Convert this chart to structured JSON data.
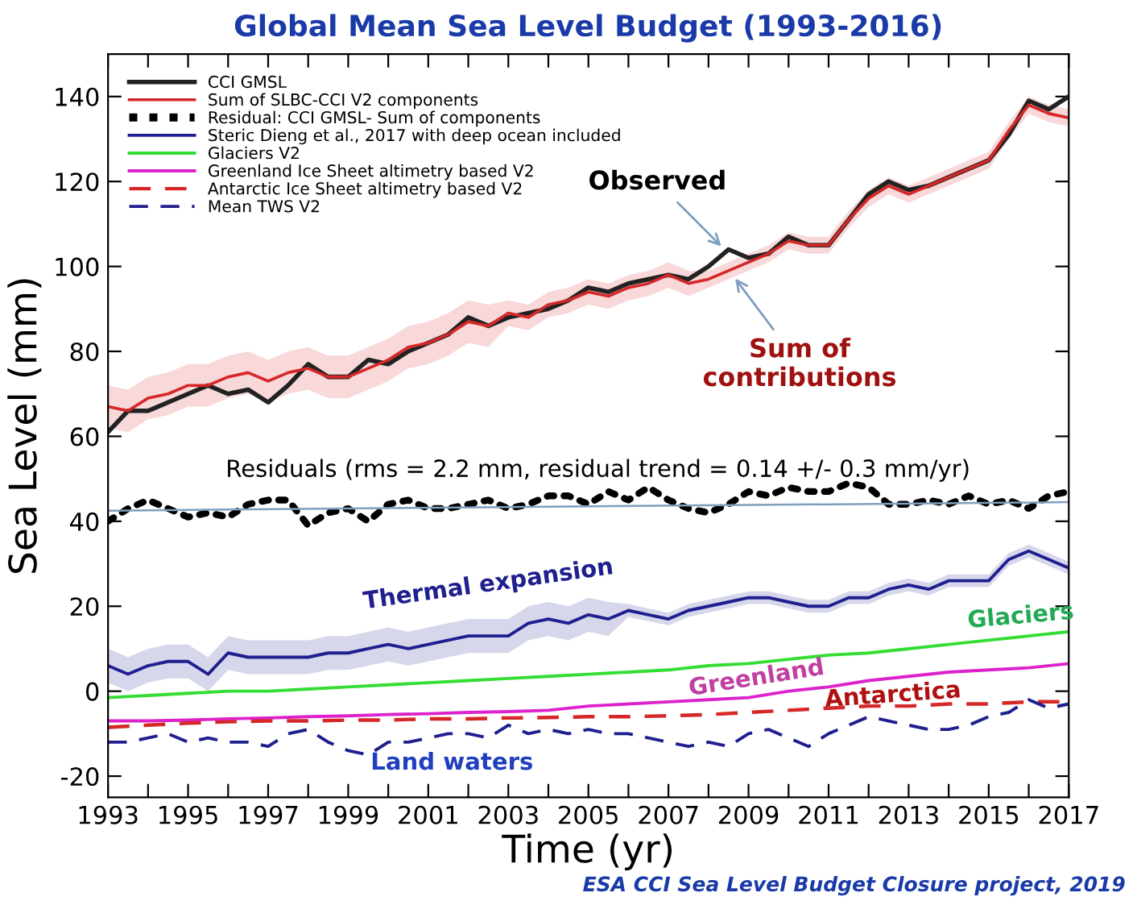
{
  "chart_data": {
    "type": "line",
    "title": "Global Mean Sea Level Budget (1993-2016)",
    "xlabel": "Time (yr)",
    "ylabel": "Sea Level (mm)",
    "x": [
      1993,
      1993.5,
      1994,
      1994.5,
      1995,
      1995.5,
      1996,
      1996.5,
      1997,
      1997.5,
      1998,
      1998.5,
      1999,
      1999.5,
      2000,
      2000.5,
      2001,
      2001.5,
      2002,
      2002.5,
      2003,
      2003.5,
      2004,
      2004.5,
      2005,
      2005.5,
      2006,
      2006.5,
      2007,
      2007.5,
      2008,
      2008.5,
      2009,
      2009.5,
      2010,
      2010.5,
      2011,
      2011.5,
      2012,
      2012.5,
      2013,
      2013.5,
      2014,
      2014.5,
      2015,
      2015.5,
      2016,
      2016.5,
      2017
    ],
    "xlim": [
      1993,
      2017
    ],
    "xticks": [
      1993,
      {
        "value": 1994,
        "label": null
      },
      1995,
      {
        "value": 1996,
        "label": null
      },
      1997,
      {
        "value": 1998,
        "label": null
      },
      1999,
      {
        "value": 2000,
        "label": null
      },
      2001,
      {
        "value": 2002,
        "label": null
      },
      2003,
      {
        "value": 2004,
        "label": null
      },
      2005,
      {
        "value": 2006,
        "label": null
      },
      2007,
      {
        "value": 2008,
        "label": null
      },
      2009,
      {
        "value": 2010,
        "label": null
      },
      2011,
      {
        "value": 2012,
        "label": null
      },
      2013,
      {
        "value": 2014,
        "label": null
      },
      2015,
      {
        "value": 2016,
        "label": null
      },
      2017
    ],
    "ylim": [
      -25,
      150
    ],
    "yticks": [
      -20,
      0,
      20,
      40,
      60,
      80,
      100,
      120,
      140
    ],
    "grid": false,
    "legend": "top left",
    "series": [
      {
        "name": "CCI GMSL",
        "color": "#222222",
        "values": [
          61,
          66,
          66,
          68,
          70,
          72,
          70,
          71,
          68,
          72,
          77,
          74,
          74,
          78,
          77,
          80,
          82,
          84,
          88,
          86,
          88,
          89,
          90,
          92,
          95,
          94,
          96,
          97,
          98,
          97,
          100,
          104,
          102,
          103,
          107,
          105,
          105,
          111,
          117,
          120,
          118,
          119,
          121,
          123,
          125,
          131,
          139,
          137,
          140
        ]
      },
      {
        "name": "Sum of SLBC-CCI V2 components",
        "color": "#d62728",
        "values": [
          67,
          66,
          69,
          70,
          72,
          72,
          74,
          75,
          73,
          75,
          76,
          74,
          74,
          76,
          78,
          81,
          82,
          84,
          87,
          86,
          89,
          88,
          91,
          92,
          94,
          93,
          95,
          96,
          98,
          96,
          97,
          99,
          101,
          103,
          106,
          105,
          105,
          111,
          116,
          119,
          117,
          119,
          121,
          123,
          125,
          132,
          138,
          136,
          135
        ],
        "lower": [
          62,
          61,
          64,
          65,
          67,
          67,
          69,
          70,
          68,
          70,
          71,
          69,
          69,
          71,
          73,
          76,
          77,
          79,
          82,
          81,
          86,
          85,
          88,
          89,
          91,
          90,
          92,
          93,
          95,
          93,
          95,
          97,
          99,
          101,
          104,
          103,
          103,
          109,
          114,
          117,
          115,
          117,
          119,
          121,
          123,
          130,
          136,
          134,
          133
        ],
        "upper": [
          72,
          71,
          74,
          75,
          77,
          77,
          79,
          80,
          78,
          80,
          81,
          79,
          79,
          81,
          83,
          86,
          87,
          89,
          92,
          91,
          92,
          91,
          94,
          95,
          97,
          96,
          98,
          99,
          101,
          99,
          99,
          101,
          103,
          105,
          108,
          107,
          107,
          113,
          118,
          121,
          119,
          121,
          123,
          125,
          127,
          134,
          140,
          138,
          137
        ]
      },
      {
        "name": "Residual: CCI GMSL- Sum of components",
        "color": "#000000",
        "line_style": "dotted",
        "values": [
          40,
          43,
          45,
          43,
          41,
          42,
          41,
          44,
          45,
          45,
          39,
          42,
          43,
          40,
          44,
          45,
          43,
          43,
          44,
          45,
          43,
          44,
          46,
          46,
          44,
          47,
          45,
          48,
          45,
          43,
          42,
          44,
          47,
          46,
          48,
          47,
          47,
          49,
          48,
          44,
          44,
          45,
          44,
          46,
          44,
          45,
          43,
          46,
          47
        ]
      },
      {
        "color": "#7f9fbf",
        "x": [
          1993,
          2017
        ],
        "values": [
          42.5,
          44.5
        ]
      },
      {
        "name": "Steric Dieng et al., 2017 with deep ocean included",
        "color": "#1f1f8f",
        "values": [
          6,
          4,
          6,
          7,
          7,
          4,
          9,
          8,
          8,
          8,
          8,
          9,
          9,
          10,
          11,
          10,
          11,
          12,
          13,
          13,
          13,
          16,
          17,
          16,
          18,
          17,
          19,
          18,
          17,
          19,
          20,
          21,
          22,
          22,
          21,
          20,
          20,
          22,
          22,
          24,
          25,
          24,
          26,
          26,
          26,
          31,
          33,
          31,
          29
        ],
        "lower": [
          2,
          0,
          2,
          3,
          3,
          0,
          5,
          4,
          4,
          4,
          4,
          5,
          5,
          6,
          7,
          6,
          7,
          8,
          9,
          9,
          9,
          12,
          13,
          12,
          14,
          13,
          17.5,
          16.5,
          15.5,
          17.5,
          18.5,
          19.5,
          20.5,
          20.5,
          19.5,
          18.5,
          18.5,
          20.5,
          20.5,
          22.5,
          23.5,
          22.5,
          24.5,
          24.5,
          24.5,
          29.5,
          31.5,
          29.5,
          27.5
        ],
        "upper": [
          10,
          8,
          10,
          11,
          11,
          8,
          13,
          12,
          12,
          12,
          12,
          13,
          13,
          14,
          15,
          14,
          15,
          16,
          17,
          17,
          17,
          20,
          21,
          20,
          22,
          21,
          20.5,
          19.5,
          18.5,
          20.5,
          21.5,
          22.5,
          23.5,
          23.5,
          22.5,
          21.5,
          21.5,
          23.5,
          23.5,
          25.5,
          26.5,
          25.5,
          27.5,
          27.5,
          27.5,
          32.5,
          34.5,
          32.5,
          30.5
        ]
      },
      {
        "name": "Glaciers V2",
        "color": "#33dd33",
        "x": [
          1993,
          1994,
          1995,
          1996,
          1997,
          1998,
          1999,
          2000,
          2001,
          2002,
          2003,
          2004,
          2005,
          2006,
          2007,
          2008,
          2009,
          2010,
          2011,
          2012,
          2013,
          2014,
          2015,
          2016,
          2017
        ],
        "values": [
          -1.5,
          -1,
          -0.5,
          0,
          0,
          0.5,
          1,
          1.5,
          2,
          2.5,
          3,
          3.5,
          4,
          4.5,
          5,
          6,
          6.5,
          7.5,
          8.5,
          9,
          10,
          11,
          12,
          13,
          14
        ]
      },
      {
        "name": "Greenland Ice Sheet altimetry based V2",
        "color": "#dd22cc",
        "x": [
          1993,
          1994,
          1995,
          1996,
          1997,
          1998,
          1999,
          2000,
          2001,
          2002,
          2003,
          2004,
          2005,
          2006,
          2007,
          2008,
          2009,
          2010,
          2011,
          2012,
          2013,
          2014,
          2015,
          2016,
          2017
        ],
        "values": [
          -7,
          -7,
          -6.8,
          -6.5,
          -6.3,
          -6,
          -5.8,
          -5.5,
          -5.3,
          -5,
          -4.8,
          -4.5,
          -3.5,
          -3,
          -2.5,
          -2,
          -1.5,
          0,
          1,
          2.5,
          3.5,
          4.5,
          5,
          5.5,
          6.5
        ]
      },
      {
        "name": "Antarctic Ice Sheet altimetry based V2",
        "color": "#d62728",
        "line_style": "dashed",
        "x": [
          1993,
          1994,
          1995,
          1996,
          1997,
          1998,
          1999,
          2000,
          2001,
          2002,
          2003,
          2004,
          2005,
          2006,
          2007,
          2008,
          2009,
          2010,
          2011,
          2012,
          2013,
          2014,
          2015,
          2016,
          2017
        ],
        "values": [
          -8.5,
          -8,
          -7.5,
          -7.2,
          -7,
          -7,
          -6.8,
          -6.8,
          -6.5,
          -6.5,
          -6.3,
          -6.2,
          -6,
          -6,
          -5.8,
          -5.5,
          -5,
          -4.5,
          -4,
          -3.5,
          -3.5,
          -3,
          -3,
          -2.5,
          -2.5
        ]
      },
      {
        "name": "Mean TWS V2",
        "color": "#1f1f8f",
        "line_style": "dashed",
        "values": [
          -12,
          -12,
          -11,
          -10,
          -12,
          -11,
          -12,
          -12,
          -13,
          -10,
          -9,
          -12,
          -14,
          -15,
          -12,
          -12,
          -11,
          -10,
          -10,
          -11,
          -8,
          -10,
          -9,
          -10,
          -9,
          -10,
          -10,
          -11,
          -12,
          -13,
          -12,
          -13,
          -10,
          -9,
          -11,
          -13,
          -10,
          -8,
          -6,
          -7,
          -8,
          -9,
          -9,
          -8,
          -6,
          -5,
          -2,
          -4,
          -3
        ]
      }
    ],
    "annotations": [
      {
        "text": "Observed",
        "x": 2008.4,
        "y": 104
      },
      {
        "text": "Sum of\ncontributions",
        "x": 2008.6,
        "y": 98
      },
      "Residuals (rms = 2.2 mm, residual trend = 0.14 +/- 0.3 mm/yr)",
      "Thermal expansion",
      "Glaciers",
      "Greenland",
      "Antarctica",
      "Land waters",
      "ESA CCI Sea Level Budget Closure project, 2019"
    ]
  }
}
